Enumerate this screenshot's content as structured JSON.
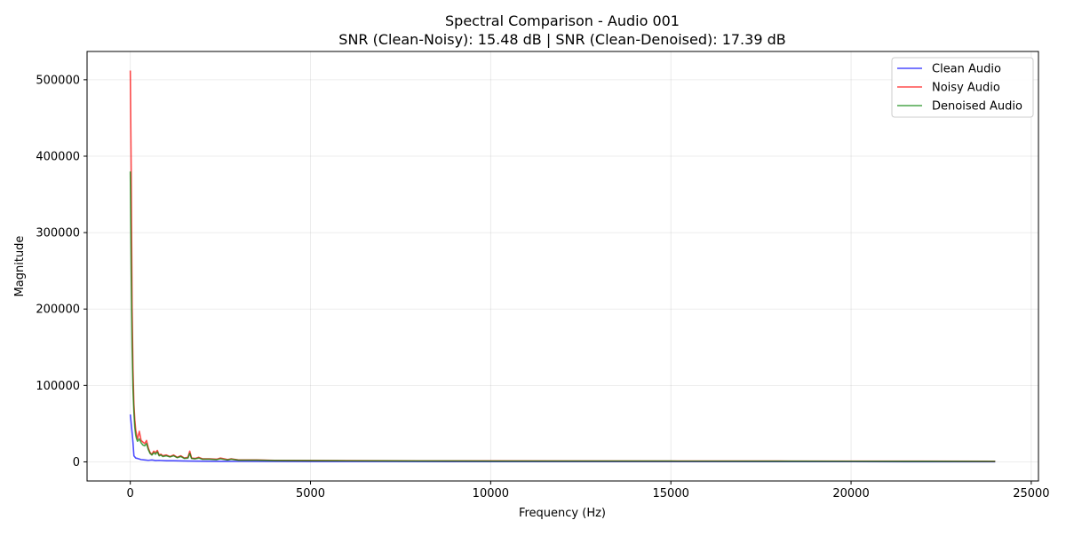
{
  "chart_data": {
    "type": "line",
    "title": "Spectral Comparison - Audio 001",
    "subtitle": "SNR (Clean-Noisy): 15.48 dB | SNR (Clean-Denoised): 17.39 dB",
    "xlabel": "Frequency (Hz)",
    "ylabel": "Magnitude",
    "xlim": [
      -1200,
      25200
    ],
    "ylim": [
      -25000,
      537000
    ],
    "x_ticks": [
      0,
      5000,
      10000,
      15000,
      20000,
      25000
    ],
    "y_ticks": [
      0,
      100000,
      200000,
      300000,
      400000,
      500000
    ],
    "x_tick_labels": [
      "0",
      "5000",
      "10000",
      "15000",
      "20000",
      "25000"
    ],
    "y_tick_labels": [
      "0",
      "100000",
      "200000",
      "300000",
      "400000",
      "500000"
    ],
    "grid": true,
    "legend_position": "top-right",
    "series": [
      {
        "name": "Clean Audio",
        "color": "#0000ff",
        "x": [
          0,
          25,
          50,
          75,
          100,
          150,
          200,
          300,
          400,
          500,
          600,
          700,
          800,
          1000,
          1200,
          1500,
          1700,
          2000,
          2500,
          3000,
          4000,
          5000,
          7000,
          10000,
          15000,
          20000,
          24000
        ],
        "y": [
          62000,
          50000,
          38000,
          25000,
          8000,
          5000,
          4500,
          3000,
          2500,
          2000,
          2500,
          1800,
          2000,
          1500,
          1500,
          1200,
          1000,
          900,
          800,
          700,
          600,
          500,
          400,
          350,
          300,
          250,
          200
        ]
      },
      {
        "name": "Noisy Audio",
        "color": "#ff0000",
        "x": [
          0,
          25,
          50,
          75,
          100,
          125,
          150,
          175,
          200,
          250,
          300,
          350,
          400,
          450,
          500,
          550,
          600,
          650,
          700,
          750,
          800,
          850,
          900,
          1000,
          1100,
          1200,
          1300,
          1400,
          1500,
          1600,
          1650,
          1700,
          1800,
          1900,
          2000,
          2200,
          2400,
          2500,
          2700,
          2800,
          3000,
          3500,
          4000,
          5000,
          6000,
          7000,
          8000,
          10000,
          12000,
          15000,
          18000,
          20000,
          22000,
          24000
        ],
        "y": [
          512000,
          380000,
          200000,
          120000,
          75000,
          55000,
          42000,
          35000,
          30000,
          40000,
          28000,
          26000,
          24000,
          28000,
          18000,
          12000,
          10000,
          14000,
          12000,
          15000,
          9000,
          10000,
          8000,
          9000,
          7000,
          9000,
          6000,
          8000,
          5000,
          6000,
          14000,
          5000,
          4500,
          6000,
          4000,
          4000,
          3500,
          5000,
          3000,
          4000,
          2500,
          2500,
          2000,
          1800,
          1600,
          1500,
          1400,
          1300,
          1200,
          1100,
          1000,
          950,
          900,
          800
        ]
      },
      {
        "name": "Denoised Audio",
        "color": "#008000",
        "x": [
          0,
          25,
          50,
          75,
          100,
          125,
          150,
          175,
          200,
          250,
          300,
          350,
          400,
          450,
          500,
          550,
          600,
          650,
          700,
          750,
          800,
          850,
          900,
          1000,
          1100,
          1200,
          1300,
          1400,
          1500,
          1600,
          1650,
          1700,
          1800,
          1900,
          2000,
          2200,
          2400,
          2500,
          2700,
          2800,
          3000,
          3500,
          4000,
          5000,
          6000,
          7000,
          8000,
          10000,
          12000,
          15000,
          18000,
          20000,
          22000,
          24000
        ],
        "y": [
          380000,
          250000,
          150000,
          95000,
          65000,
          45000,
          35000,
          30000,
          27000,
          30000,
          25000,
          22000,
          21000,
          24000,
          16000,
          11000,
          9000,
          12000,
          10000,
          13000,
          8000,
          9000,
          7000,
          8000,
          6500,
          8000,
          5500,
          7000,
          4500,
          5000,
          11000,
          4500,
          4000,
          5000,
          3500,
          3500,
          3000,
          4000,
          2500,
          3500,
          2200,
          2200,
          1800,
          1600,
          1400,
          1300,
          1200,
          1100,
          1000,
          1000,
          900,
          850,
          800,
          700
        ]
      }
    ]
  }
}
